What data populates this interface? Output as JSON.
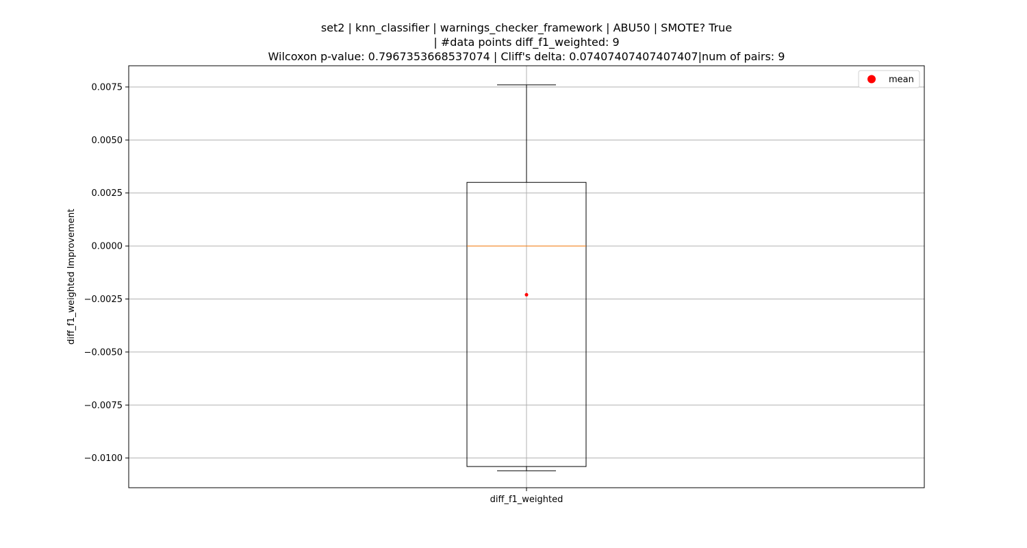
{
  "chart_data": {
    "type": "box",
    "title_lines": [
      "set2 | knn_classifier | warnings_checker_framework | ABU50 | SMOTE? True",
      "| #data points diff_f1_weighted: 9",
      "Wilcoxon p-value: 0.7967353668537074 | Cliff's delta: 0.07407407407407407|num of pairs: 9"
    ],
    "ylabel": "diff_f1_weighted Improvement",
    "categories": [
      "diff_f1_weighted"
    ],
    "ylim": [
      -0.0114,
      0.0085
    ],
    "yticks": [
      0.0075,
      0.005,
      0.0025,
      0.0,
      -0.0025,
      -0.005,
      -0.0075,
      -0.01
    ],
    "ytick_labels": [
      "0.0075",
      "0.0050",
      "0.0025",
      "0.0000",
      "−0.0025",
      "−0.0050",
      "−0.0075",
      "−0.0100"
    ],
    "grid": true,
    "boxes": [
      {
        "name": "diff_f1_weighted",
        "whisker_low": -0.0106,
        "q1": -0.0104,
        "median": 0.0,
        "q3": 0.003,
        "whisker_high": 0.0076,
        "mean": -0.0023
      }
    ],
    "colors": {
      "box": "#000000",
      "median": "#ff7f0e",
      "mean": "#ff0000",
      "grid": "#b0b0b0"
    },
    "legend": {
      "position": "top-right",
      "entries": [
        {
          "label": "mean",
          "marker": "red-dot"
        }
      ]
    }
  }
}
